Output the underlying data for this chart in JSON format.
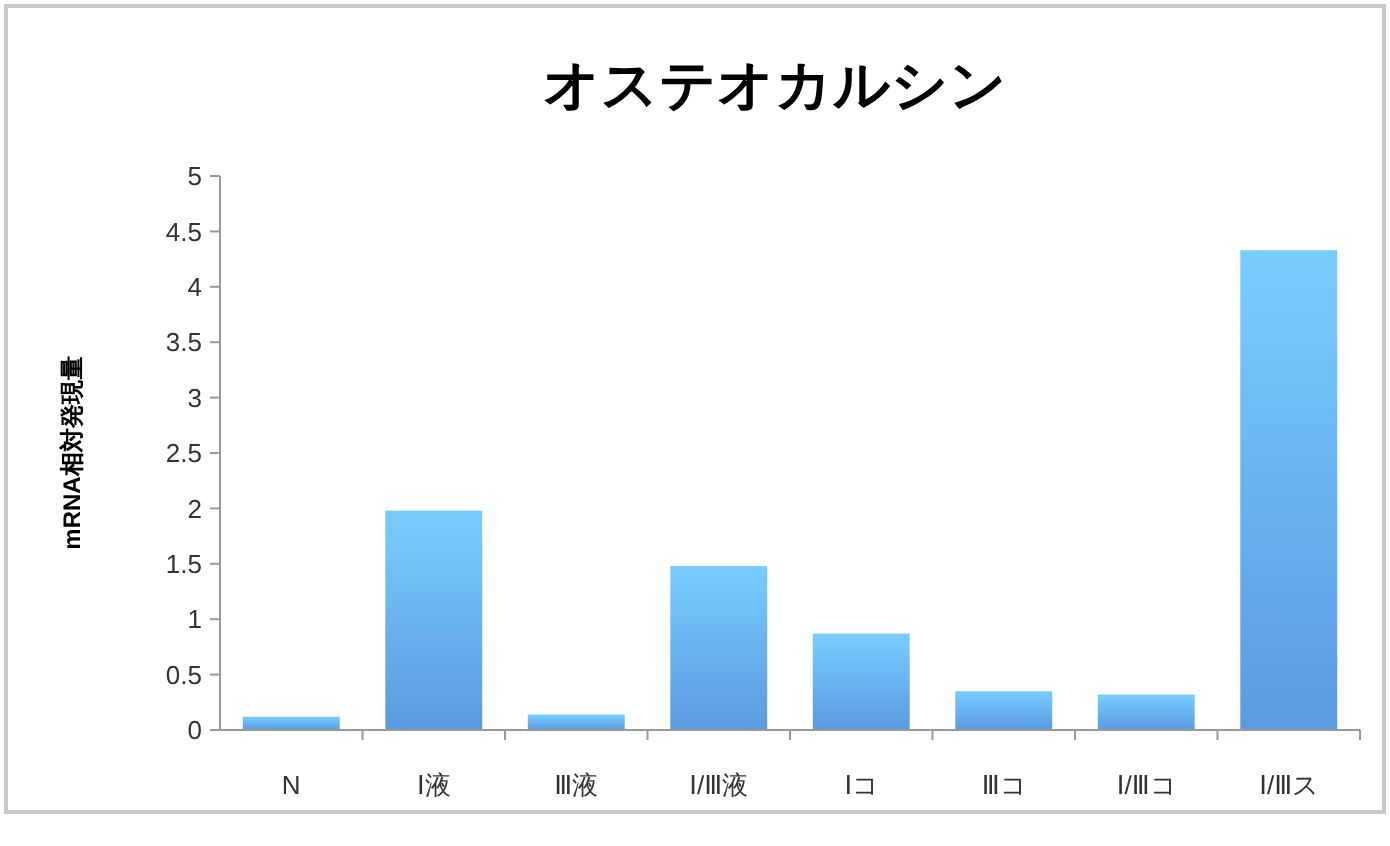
{
  "chart_data": {
    "type": "bar",
    "title": "オステオカルシン",
    "ylabel": "mRNA相対発現量",
    "categories": [
      "N",
      "Ⅰ液",
      "Ⅲ液",
      "Ⅰ/Ⅲ液",
      "Ⅰコ",
      "Ⅲコ",
      "Ⅰ/Ⅲコ",
      "Ⅰ/Ⅲス"
    ],
    "values": [
      0.12,
      1.98,
      0.14,
      1.48,
      0.87,
      0.35,
      0.32,
      4.33
    ],
    "color": "#5a9ae0",
    "ylim": [
      0,
      5
    ],
    "yticks": [
      0,
      0.5,
      1,
      1.5,
      2,
      2.5,
      3,
      3.5,
      4,
      4.5,
      5
    ],
    "grid": false
  }
}
